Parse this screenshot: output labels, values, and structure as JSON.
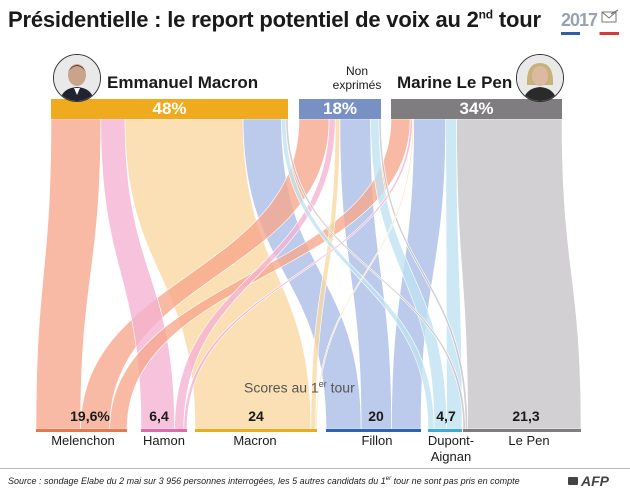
{
  "header": {
    "title": "Présidentielle : le report potentiel de voix au 2",
    "title_sup": "nd",
    "title_end": " tour",
    "logo_year": "2017"
  },
  "chart_data": {
    "type": "sankey",
    "title": "Présidentielle : le report potentiel de voix au 2nd tour",
    "destinations": [
      {
        "name": "Emmanuel Macron",
        "value": "48%",
        "pct": 48,
        "color": "#f0aa1e"
      },
      {
        "name": "Non exprimés",
        "name_lines": [
          "Non",
          "exprimés"
        ],
        "value": "18%",
        "pct": 18,
        "color": "#7891c5"
      },
      {
        "name": "Marine Le Pen",
        "value": "34%",
        "pct": 34,
        "color": "#807d80"
      }
    ],
    "scores_title": "Scores au 1",
    "scores_title_sup": "er",
    "scores_title_end": " tour",
    "sources": [
      {
        "name": "Melenchon",
        "value": "19,6%",
        "score": 19.6,
        "color": "#f7a68c",
        "line_color": "#e8764f"
      },
      {
        "name": "Hamon",
        "value": "6,4",
        "score": 6.4,
        "color": "#f5b2d2",
        "line_color": "#e06aa6"
      },
      {
        "name": "Macron",
        "value": "24",
        "score": 24,
        "color": "#fad7a0",
        "line_color": "#f0aa1e"
      },
      {
        "name": "Fillon",
        "value": "20",
        "score": 20,
        "color": "#a9bce6",
        "line_color": "#2c63b8"
      },
      {
        "name": "Dupont-Aignan",
        "name_lines": [
          "Dupont-",
          "Aignan"
        ],
        "value": "4,7",
        "score": 4.7,
        "color": "#bfe1f2",
        "line_color": "#3fa9d8"
      },
      {
        "name": "Le Pen",
        "value": "21,3",
        "score": 21.3,
        "color": "#c5c3c5",
        "line_color": "#807d80"
      }
    ],
    "flows": [
      {
        "from": "Melenchon",
        "to": "Emmanuel Macron",
        "share": 0.49
      },
      {
        "from": "Melenchon",
        "to": "Non exprimés",
        "share": 0.32
      },
      {
        "from": "Melenchon",
        "to": "Marine Le Pen",
        "share": 0.19
      },
      {
        "from": "Hamon",
        "to": "Emmanuel Macron",
        "share": 0.73
      },
      {
        "from": "Hamon",
        "to": "Non exprimés",
        "share": 0.2
      },
      {
        "from": "Hamon",
        "to": "Marine Le Pen",
        "share": 0.07
      },
      {
        "from": "Macron",
        "to": "Emmanuel Macron",
        "share": 0.95
      },
      {
        "from": "Macron",
        "to": "Non exprimés",
        "share": 0.04
      },
      {
        "from": "Macron",
        "to": "Marine Le Pen",
        "share": 0.01
      },
      {
        "from": "Fillon",
        "to": "Emmanuel Macron",
        "share": 0.37
      },
      {
        "from": "Fillon",
        "to": "Non exprimés",
        "share": 0.32
      },
      {
        "from": "Fillon",
        "to": "Marine Le Pen",
        "share": 0.31
      },
      {
        "from": "Dupont-Aignan",
        "to": "Emmanuel Macron",
        "share": 0.18
      },
      {
        "from": "Dupont-Aignan",
        "to": "Non exprimés",
        "share": 0.37
      },
      {
        "from": "Dupont-Aignan",
        "to": "Marine Le Pen",
        "share": 0.45
      },
      {
        "from": "Le Pen",
        "to": "Emmanuel Macron",
        "share": 0.02
      },
      {
        "from": "Le Pen",
        "to": "Non exprimés",
        "share": 0.02
      },
      {
        "from": "Le Pen",
        "to": "Marine Le Pen",
        "share": 0.96
      }
    ]
  },
  "footer": {
    "source_prefix": "Source : sondage Elabe du 2 mai sur 3 956 personnes interrogées, les 5 autres candidats du 1",
    "source_sup": "er",
    "source_end": " tour ne sont pas pris en compte",
    "credit": "AFP"
  }
}
